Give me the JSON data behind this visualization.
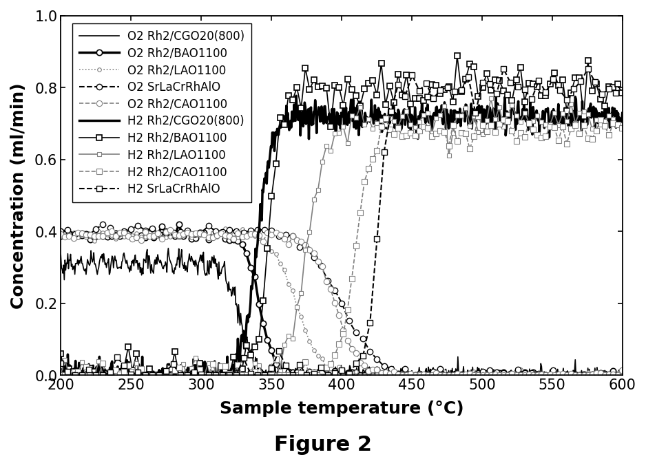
{
  "title": "Figure 2",
  "xlabel": "Sample temperature (°C)",
  "ylabel": "Concentration (ml/min)",
  "xlim": [
    200,
    600
  ],
  "ylim": [
    0,
    1
  ],
  "yticks": [
    0,
    0.2,
    0.4,
    0.6,
    0.8,
    1.0
  ],
  "xticks": [
    200,
    250,
    300,
    350,
    400,
    450,
    500,
    550,
    600
  ],
  "legend_entries": [
    "O2 Rh2/CGO20(800)",
    "O2 Rh2/BAO1100",
    "O2 Rh2/LAO1100",
    "O2 SrLaCrRhAlO",
    "O2 Rh2/CAO1100",
    "H2 Rh2/CGO20(800)",
    "H2 Rh2/BAO1100",
    "H2 Rh2/LAO1100",
    "H2 Rh2/CAO1100",
    "H2 SrLaCrRhAlO"
  ],
  "figsize_inches": [
    23.84,
    16.95
  ],
  "dpi": 100
}
